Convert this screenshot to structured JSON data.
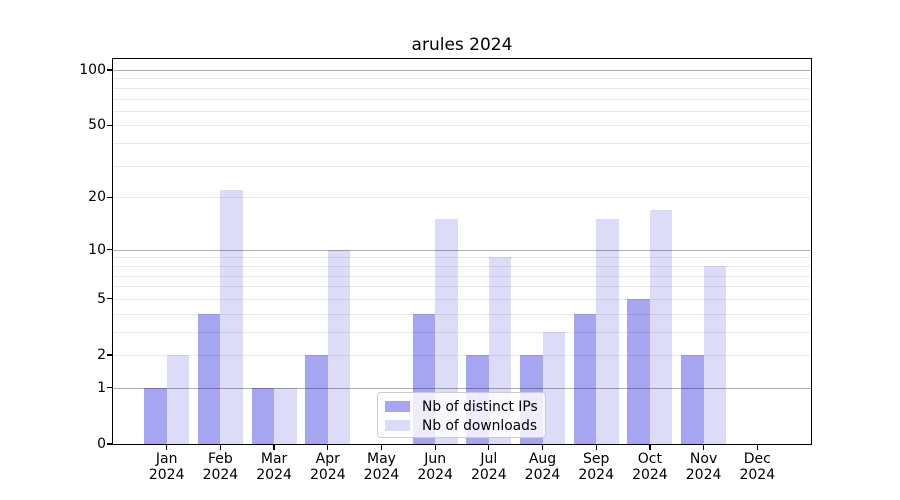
{
  "chart_data": {
    "type": "bar",
    "title": "arules 2024",
    "categories": [
      "Jan",
      "Feb",
      "Mar",
      "Apr",
      "May",
      "Jun",
      "Jul",
      "Aug",
      "Sep",
      "Oct",
      "Nov",
      "Dec"
    ],
    "category_year": "2024",
    "series": [
      {
        "name": "Nb of distinct IPs",
        "color": "#a5a5f2",
        "values": [
          1,
          4,
          1,
          2,
          0,
          4,
          2,
          2,
          4,
          5,
          2,
          0
        ]
      },
      {
        "name": "Nb of downloads",
        "color": "#dcdcf9",
        "values": [
          2,
          22,
          1,
          10,
          0,
          15,
          9,
          3,
          15,
          17,
          8,
          0
        ]
      }
    ],
    "xlabel": "",
    "ylabel": "",
    "yscale": "log1p",
    "ylim": [
      0,
      115
    ],
    "y_tick_labels": [
      0,
      1,
      2,
      5,
      10,
      20,
      50,
      100
    ],
    "y_major_gridlines": [
      1,
      10,
      100
    ],
    "y_minor_gridlines": [
      2,
      3,
      4,
      5,
      6,
      7,
      8,
      9,
      20,
      30,
      40,
      50,
      60,
      70,
      80,
      90
    ],
    "grid": "on, drawn above bars",
    "legend": {
      "entries": [
        "Nb of distinct IPs",
        "Nb of downloads"
      ],
      "position": "lower center inside axes"
    }
  }
}
